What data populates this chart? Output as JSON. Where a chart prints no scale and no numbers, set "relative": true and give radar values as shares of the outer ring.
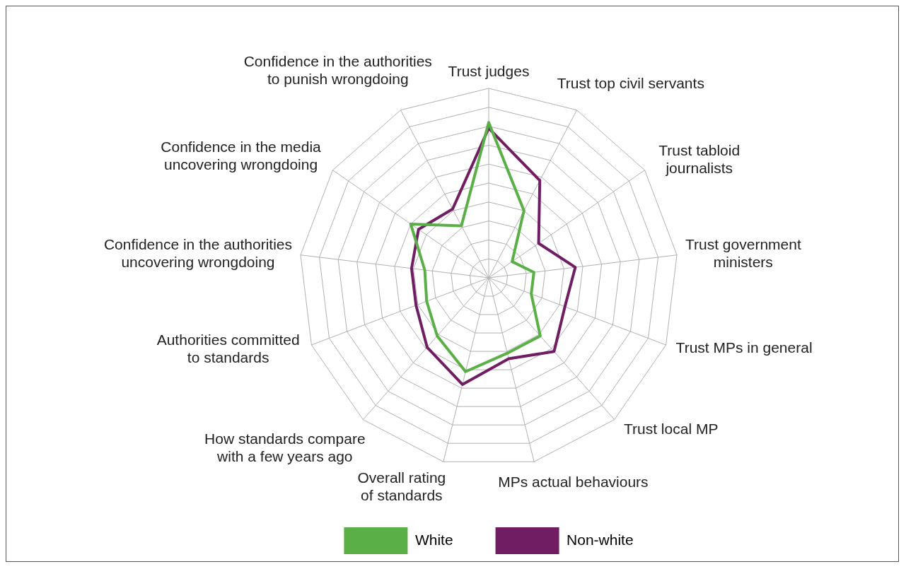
{
  "chart_data": {
    "type": "radar",
    "relative": true,
    "legend": "bottom",
    "grid": true,
    "categories": [
      "Trust judges",
      "Trust top civil servants",
      "Trust tabloid journalists",
      "Trust government ministers",
      "Trust MPs in general",
      "Trust local MP",
      "MPs actual behaviours",
      "Overall rating of standards",
      "How standards compare with a few years ago",
      "Authorities committed to standards",
      "Confidence in the authorities uncovering wrongdoing",
      "Confidence in the media uncovering wrongdoing",
      "Confidence in the authorities to punish wrongdoing"
    ],
    "series": [
      {
        "name": "White",
        "color": "#5ab046",
        "values": [
          0.82,
          0.4,
          0.15,
          0.24,
          0.24,
          0.41,
          0.41,
          0.51,
          0.41,
          0.35,
          0.34,
          0.5,
          0.31
        ]
      },
      {
        "name": "Non-white",
        "color": "#711d63",
        "values": [
          0.79,
          0.58,
          0.32,
          0.46,
          0.43,
          0.52,
          0.44,
          0.58,
          0.49,
          0.41,
          0.41,
          0.45,
          0.41
        ]
      }
    ]
  }
}
